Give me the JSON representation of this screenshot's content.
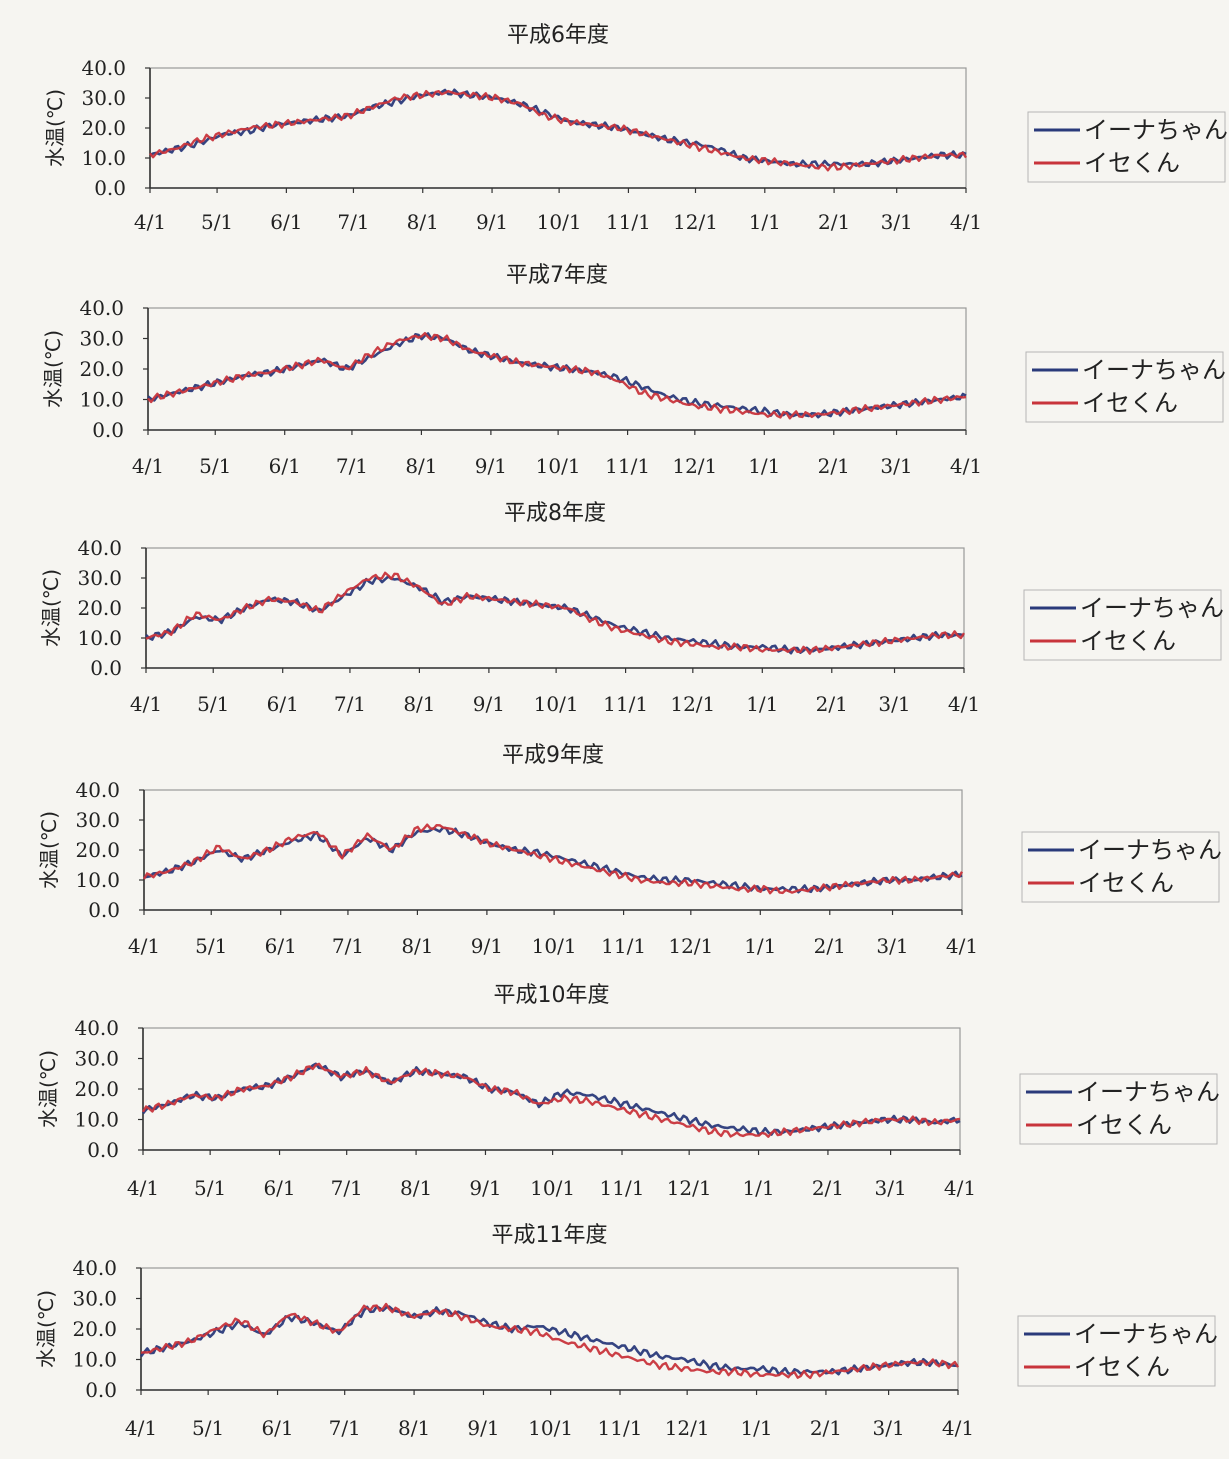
{
  "colors": {
    "inachan": "#2a3a7a",
    "isekun": "#c8343b",
    "axis": "#333333",
    "plot_border": "#9a9a9a",
    "text": "#222222",
    "background": "#f6f5f1"
  },
  "chart_data": [
    {
      "type": "line",
      "title": "平成6年度",
      "ylabel": "水温(℃)",
      "ylim": [
        0,
        40
      ],
      "yticks": [
        "40.0",
        "30.0",
        "20.0",
        "10.0",
        "0.0"
      ],
      "xticks": [
        "4/1",
        "5/1",
        "6/1",
        "7/1",
        "8/1",
        "9/1",
        "10/1",
        "11/1",
        "12/1",
        "1/1",
        "2/1",
        "3/1",
        "4/1"
      ],
      "x_range": [
        "4/1",
        "4/1"
      ],
      "series": [
        {
          "name": "イーナちゃん",
          "values": [
            11,
            13,
            15,
            18,
            19,
            21,
            22,
            23,
            24,
            27,
            29,
            31,
            32,
            31,
            30,
            28,
            25,
            22,
            21,
            20,
            18,
            16,
            15,
            13,
            10,
            9,
            8,
            8,
            8,
            8,
            9,
            10,
            11,
            11
          ]
        },
        {
          "name": "イセくん",
          "values": [
            11,
            13,
            16,
            18,
            20,
            21,
            22,
            23,
            24,
            27,
            30,
            31,
            32,
            31,
            30,
            28,
            24,
            22,
            21,
            20,
            18,
            16,
            14,
            12,
            10,
            9,
            8,
            7,
            7,
            8,
            9,
            10,
            11,
            11
          ]
        }
      ],
      "legend_position": "right"
    },
    {
      "type": "line",
      "title": "平成7年度",
      "ylabel": "水温(℃)",
      "ylim": [
        0,
        40
      ],
      "yticks": [
        "40.0",
        "30.0",
        "20.0",
        "10.0",
        "0.0"
      ],
      "xticks": [
        "4/1",
        "5/1",
        "6/1",
        "7/1",
        "8/1",
        "9/1",
        "10/1",
        "11/1",
        "12/1",
        "1/1",
        "2/1",
        "3/1",
        "4/1"
      ],
      "x_range": [
        "4/1",
        "4/1"
      ],
      "series": [
        {
          "name": "イーナちゃん",
          "values": [
            10,
            12,
            14,
            16,
            18,
            19,
            21,
            23,
            20,
            24,
            28,
            31,
            30,
            26,
            24,
            22,
            21,
            20,
            19,
            17,
            14,
            11,
            9,
            8,
            7,
            6,
            5,
            5,
            6,
            7,
            8,
            9,
            10,
            11
          ]
        },
        {
          "name": "イセくん",
          "values": [
            10,
            12,
            14,
            16,
            18,
            19,
            21,
            23,
            20,
            25,
            29,
            31,
            30,
            26,
            24,
            22,
            21,
            20,
            19,
            16,
            12,
            10,
            8,
            7,
            6,
            5,
            5,
            5,
            6,
            7,
            8,
            9,
            10,
            11
          ]
        }
      ],
      "legend_position": "right"
    },
    {
      "type": "line",
      "title": "平成8年度",
      "ylabel": "水温(℃)",
      "ylim": [
        0,
        40
      ],
      "yticks": [
        "40.0",
        "30.0",
        "20.0",
        "10.0",
        "0.0"
      ],
      "xticks": [
        "4/1",
        "5/1",
        "6/1",
        "7/1",
        "8/1",
        "9/1",
        "10/1",
        "11/1",
        "12/1",
        "1/1",
        "2/1",
        "3/1",
        "4/1"
      ],
      "x_range": [
        "4/1",
        "4/1"
      ],
      "series": [
        {
          "name": "イーナちゃん",
          "values": [
            10,
            12,
            17,
            16,
            20,
            23,
            22,
            19,
            24,
            29,
            30,
            27,
            22,
            24,
            23,
            22,
            21,
            20,
            17,
            14,
            12,
            10,
            9,
            8,
            7,
            7,
            6,
            6,
            7,
            8,
            9,
            10,
            11,
            11
          ]
        },
        {
          "name": "イセくん",
          "values": [
            10,
            12,
            18,
            16,
            20,
            23,
            22,
            19,
            25,
            30,
            31,
            27,
            21,
            24,
            23,
            22,
            21,
            20,
            16,
            13,
            11,
            9,
            8,
            7,
            7,
            6,
            6,
            6,
            7,
            8,
            9,
            10,
            11,
            11
          ]
        }
      ],
      "legend_position": "right"
    },
    {
      "type": "line",
      "title": "平成9年度",
      "ylabel": "水温(℃)",
      "ylim": [
        0,
        40
      ],
      "yticks": [
        "40.0",
        "30.0",
        "20.0",
        "10.0",
        "0.0"
      ],
      "xticks": [
        "4/1",
        "5/1",
        "6/1",
        "7/1",
        "8/1",
        "9/1",
        "10/1",
        "11/1",
        "12/1",
        "1/1",
        "2/1",
        "3/1",
        "4/1"
      ],
      "x_range": [
        "4/1",
        "4/1"
      ],
      "series": [
        {
          "name": "イーナちゃん",
          "values": [
            11,
            13,
            16,
            20,
            17,
            20,
            23,
            25,
            18,
            24,
            20,
            26,
            27,
            25,
            22,
            20,
            19,
            17,
            15,
            13,
            11,
            10,
            10,
            9,
            8,
            7,
            7,
            7,
            8,
            9,
            10,
            10,
            11,
            12
          ]
        },
        {
          "name": "イセくん",
          "values": [
            11,
            13,
            16,
            21,
            17,
            20,
            24,
            26,
            18,
            25,
            20,
            27,
            28,
            25,
            22,
            20,
            18,
            16,
            14,
            12,
            10,
            9,
            9,
            8,
            7,
            7,
            6,
            7,
            8,
            9,
            10,
            10,
            11,
            12
          ]
        }
      ],
      "legend_position": "right"
    },
    {
      "type": "line",
      "title": "平成10年度",
      "ylabel": "水温(℃)",
      "ylim": [
        0,
        40
      ],
      "yticks": [
        "40.0",
        "30.0",
        "20.0",
        "10.0",
        "0.0"
      ],
      "xticks": [
        "4/1",
        "5/1",
        "6/1",
        "7/1",
        "8/1",
        "9/1",
        "10/1",
        "11/1",
        "12/1",
        "1/1",
        "2/1",
        "3/1",
        "4/1"
      ],
      "x_range": [
        "4/1",
        "4/1"
      ],
      "series": [
        {
          "name": "イーナちゃん",
          "values": [
            13,
            15,
            18,
            17,
            20,
            21,
            24,
            28,
            24,
            26,
            22,
            26,
            25,
            24,
            20,
            19,
            15,
            19,
            18,
            16,
            14,
            12,
            10,
            8,
            7,
            6,
            6,
            7,
            8,
            9,
            10,
            10,
            9,
            10
          ]
        },
        {
          "name": "イセくん",
          "values": [
            13,
            15,
            18,
            17,
            20,
            21,
            24,
            28,
            24,
            26,
            22,
            26,
            25,
            24,
            20,
            19,
            15,
            17,
            16,
            14,
            12,
            10,
            8,
            6,
            5,
            5,
            6,
            7,
            8,
            9,
            10,
            10,
            9,
            10
          ]
        }
      ],
      "legend_position": "right"
    },
    {
      "type": "line",
      "title": "平成11年度",
      "ylabel": "水温(℃)",
      "ylim": [
        0,
        40
      ],
      "yticks": [
        "40.0",
        "30.0",
        "20.0",
        "10.0",
        "0.0"
      ],
      "xticks": [
        "4/1",
        "5/1",
        "6/1",
        "7/1",
        "8/1",
        "9/1",
        "10/1",
        "11/1",
        "12/1",
        "1/1",
        "2/1",
        "3/1",
        "4/1"
      ],
      "x_range": [
        "4/1",
        "4/1"
      ],
      "series": [
        {
          "name": "イーナちゃん",
          "values": [
            12,
            14,
            16,
            19,
            22,
            18,
            24,
            22,
            19,
            26,
            27,
            24,
            26,
            25,
            22,
            20,
            21,
            19,
            17,
            15,
            13,
            11,
            10,
            8,
            7,
            7,
            6,
            6,
            6,
            7,
            8,
            9,
            9,
            8
          ]
        },
        {
          "name": "イセくん",
          "values": [
            12,
            14,
            16,
            20,
            23,
            18,
            25,
            22,
            19,
            27,
            27,
            24,
            26,
            24,
            21,
            20,
            19,
            16,
            14,
            12,
            10,
            8,
            7,
            6,
            6,
            5,
            5,
            5,
            6,
            7,
            8,
            9,
            9,
            8
          ]
        }
      ],
      "legend_position": "right"
    }
  ]
}
